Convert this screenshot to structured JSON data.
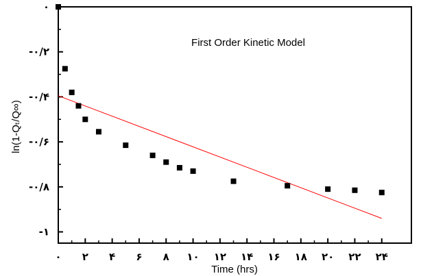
{
  "chart_data": {
    "type": "scatter",
    "title": "First Order Kinetic Model",
    "xlabel": "Time (hrs)",
    "ylabel": "ln(1-Qₜ/Q∞)",
    "xlim": [
      0,
      26.2
    ],
    "ylim": [
      -1.05,
      0
    ],
    "x_ticks": [
      0,
      2,
      4,
      6,
      8,
      10,
      12,
      14,
      16,
      18,
      20,
      22,
      24
    ],
    "x_tick_labels": [
      "۰",
      "۲",
      "۴",
      "۶",
      "۸",
      "۱۰",
      "۱۲",
      "۱۴",
      "۱۶",
      "۱۸",
      "۲۰",
      "۲۲",
      "۲۴"
    ],
    "y_ticks": [
      0,
      -0.2,
      -0.4,
      -0.6,
      -0.8,
      -1
    ],
    "y_tick_labels": [
      "۰",
      "-۰/۲",
      "-۰/۴",
      "-۰/۶",
      "-۰/۸",
      "-۱"
    ],
    "grid": false,
    "legend": "none",
    "series": [
      {
        "marker": "square",
        "color": "#000000",
        "x": [
          0,
          0.5,
          1,
          1.5,
          2,
          3,
          5,
          7,
          8,
          9,
          10,
          13,
          17,
          20,
          22,
          24
        ],
        "y": [
          0,
          -0.275,
          -0.38,
          -0.44,
          -0.5,
          -0.555,
          -0.615,
          -0.66,
          -0.69,
          -0.715,
          -0.73,
          -0.775,
          -0.795,
          -0.81,
          -0.815,
          -0.825
        ]
      }
    ],
    "fit_line": {
      "color": "#ff0000",
      "x": [
        0,
        24
      ],
      "y": [
        -0.395,
        -0.94
      ]
    }
  }
}
